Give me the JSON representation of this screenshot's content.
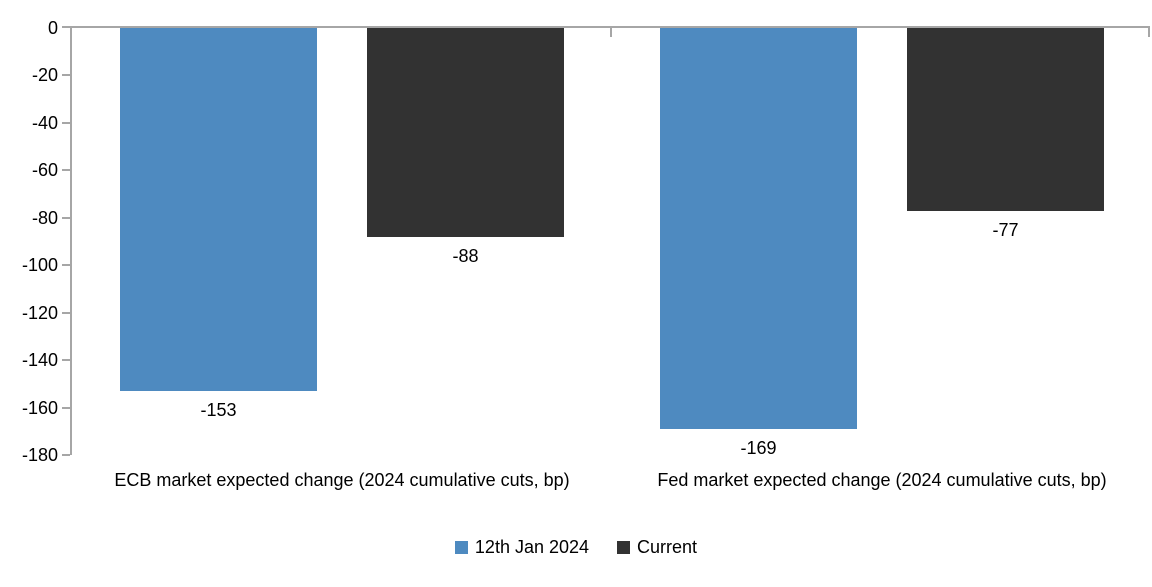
{
  "chart_data": {
    "type": "bar",
    "title": "",
    "xlabel": "",
    "ylabel": "",
    "categories": [
      "ECB market expected change (2024 cumulative cuts, bp)",
      "Fed market expected change (2024 cumulative cuts, bp)"
    ],
    "series": [
      {
        "name": "12th Jan 2024",
        "color": "#4e8ac0",
        "values": [
          -153,
          -169
        ]
      },
      {
        "name": "Current",
        "color": "#323232",
        "values": [
          -88,
          -77
        ]
      }
    ],
    "data_labels": [
      [
        "-153",
        "-169"
      ],
      [
        "-88",
        "-77"
      ]
    ],
    "ylim": [
      -180,
      0
    ],
    "y_ticks": [
      0,
      -20,
      -40,
      -60,
      -80,
      -100,
      -120,
      -140,
      -160,
      -180
    ],
    "grid": false,
    "legend_position": "bottom",
    "axis_color": "#a6a6a6",
    "background_color": "#ffffff",
    "text_color": "#000000"
  }
}
